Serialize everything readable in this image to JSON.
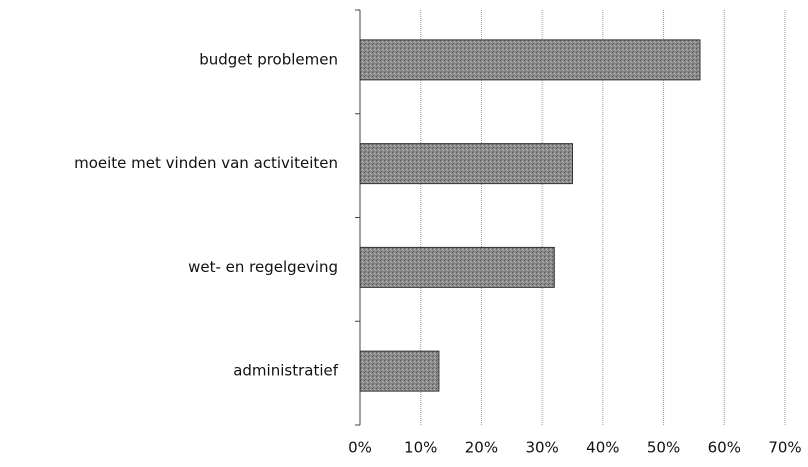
{
  "chart_data": {
    "type": "bar",
    "orientation": "horizontal",
    "categories": [
      "budget problemen",
      "moeite met vinden van activiteiten",
      "wet- en regelgeving",
      "administratief"
    ],
    "values": [
      56,
      35,
      32,
      13
    ],
    "color": "#8a8a8a",
    "xlim": [
      0,
      70
    ],
    "xticks": [
      {
        "value": 0,
        "label": "0%"
      },
      {
        "value": 10,
        "label": "10%"
      },
      {
        "value": 20,
        "label": "20%"
      },
      {
        "value": 30,
        "label": "30%"
      },
      {
        "value": 40,
        "label": "40%"
      },
      {
        "value": 50,
        "label": "50%"
      },
      {
        "value": 60,
        "label": "60%"
      },
      {
        "value": 70,
        "label": "70%"
      }
    ],
    "grid": true
  }
}
